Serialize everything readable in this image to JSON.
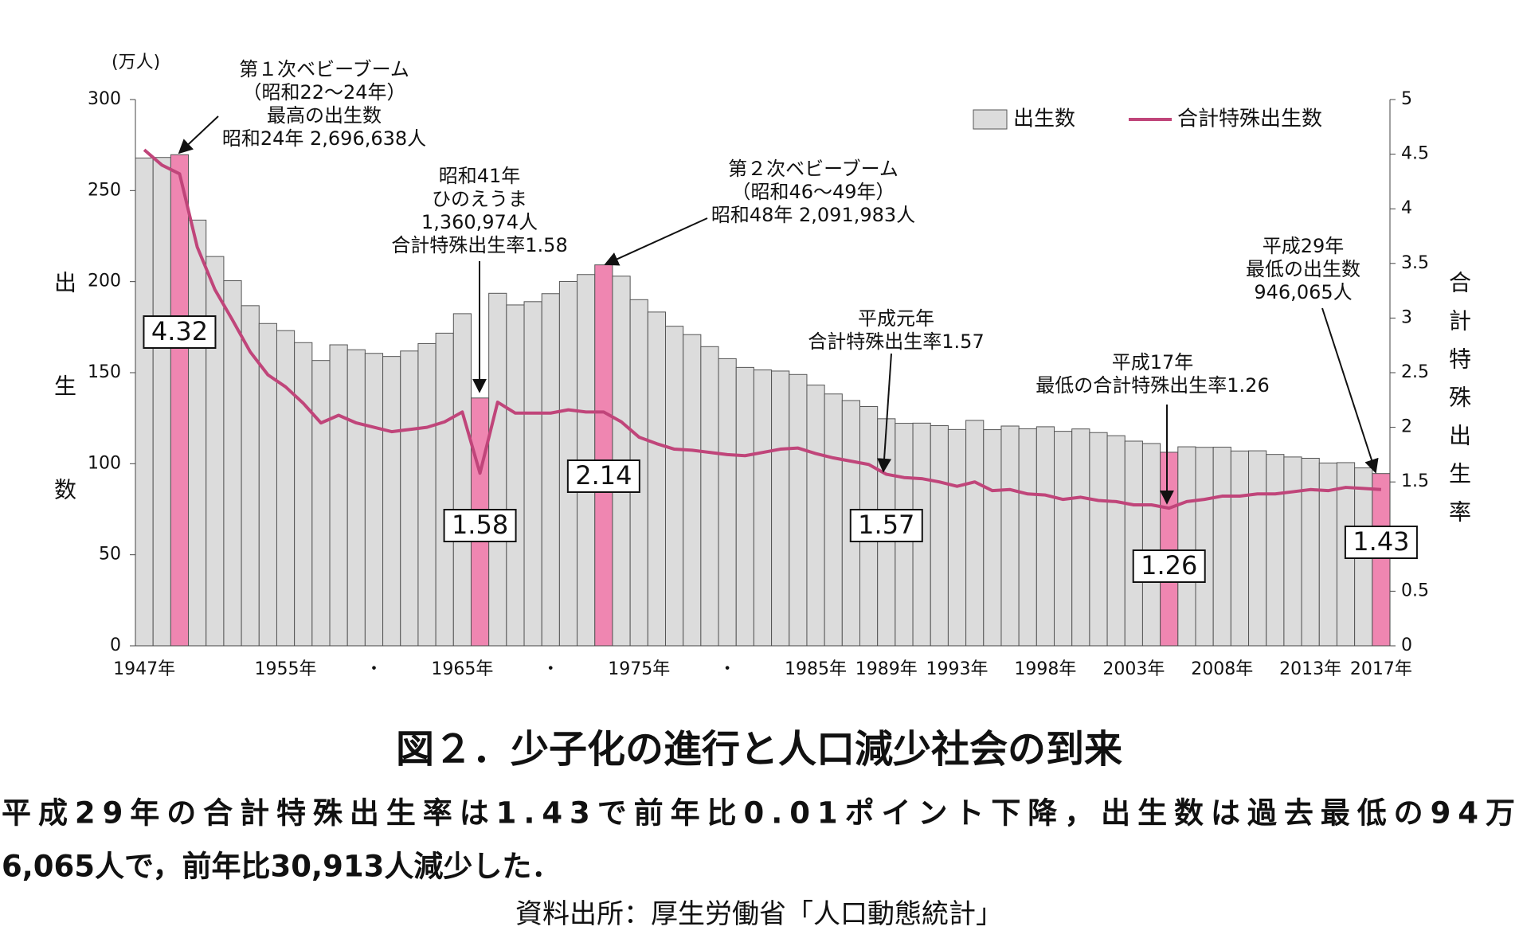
{
  "chart_data": {
    "type": "bar_line",
    "title": "図２．少子化の進行と人口減少社会の到来",
    "subtitle": [
      "平成29年の合計特殊出生率は1.43で前年比0.01ポイント下降，出生数は過去最低の94万",
      "6,065人で，前年比30,913人減少した．"
    ],
    "source": "資料出所：厚生労働省「人口動態統計」",
    "y_unit": "(万人)",
    "ylabel": "出生数",
    "y2label": "合計特殊出生率",
    "categories": [
      "1947年",
      null,
      null,
      null,
      null,
      null,
      null,
      null,
      "1955年",
      null,
      null,
      null,
      null,
      "・",
      null,
      null,
      null,
      null,
      "1965年",
      null,
      null,
      null,
      null,
      "・",
      null,
      null,
      null,
      null,
      "1975年",
      null,
      null,
      null,
      null,
      "・",
      null,
      null,
      null,
      null,
      "1985年",
      null,
      null,
      null,
      "1989年",
      null,
      null,
      null,
      "1993年",
      null,
      null,
      null,
      null,
      "1998年",
      null,
      null,
      null,
      null,
      "2003年",
      null,
      null,
      null,
      null,
      "2008年",
      null,
      null,
      null,
      null,
      "2013年",
      null,
      null,
      null,
      "2017年"
    ],
    "series": [
      {
        "name": "出生数",
        "type": "bar",
        "color": "#dcdcdc",
        "colors": [
          "#dcdcdc",
          "#dcdcdc",
          "#ef86b1",
          "#dcdcdc",
          "#dcdcdc",
          "#dcdcdc",
          "#dcdcdc",
          "#dcdcdc",
          "#dcdcdc",
          "#dcdcdc",
          "#dcdcdc",
          "#dcdcdc",
          "#dcdcdc",
          "#dcdcdc",
          "#dcdcdc",
          "#dcdcdc",
          "#dcdcdc",
          "#dcdcdc",
          "#dcdcdc",
          "#ef86b1",
          "#dcdcdc",
          "#dcdcdc",
          "#dcdcdc",
          "#dcdcdc",
          "#dcdcdc",
          "#dcdcdc",
          "#ef86b1",
          "#dcdcdc",
          "#dcdcdc",
          "#dcdcdc",
          "#dcdcdc",
          "#dcdcdc",
          "#dcdcdc",
          "#dcdcdc",
          "#dcdcdc",
          "#dcdcdc",
          "#dcdcdc",
          "#dcdcdc",
          "#dcdcdc",
          "#dcdcdc",
          "#dcdcdc",
          "#dcdcdc",
          "#dcdcdc",
          "#dcdcdc",
          "#dcdcdc",
          "#dcdcdc",
          "#dcdcdc",
          "#dcdcdc",
          "#dcdcdc",
          "#dcdcdc",
          "#dcdcdc",
          "#dcdcdc",
          "#dcdcdc",
          "#dcdcdc",
          "#dcdcdc",
          "#dcdcdc",
          "#dcdcdc",
          "#dcdcdc",
          "#ef86b1",
          "#dcdcdc",
          "#dcdcdc",
          "#dcdcdc",
          "#dcdcdc",
          "#dcdcdc",
          "#dcdcdc",
          "#dcdcdc",
          "#dcdcdc",
          "#dcdcdc",
          "#dcdcdc",
          "#dcdcdc",
          "#ef86b1"
        ],
        "values": [
          267.9,
          268.2,
          269.7,
          233.8,
          213.8,
          200.5,
          186.8,
          177.0,
          173.1,
          166.5,
          156.7,
          165.3,
          162.6,
          160.6,
          158.9,
          161.9,
          166.0,
          171.7,
          182.4,
          136.1,
          193.6,
          187.2,
          189.0,
          193.4,
          200.1,
          203.9,
          209.2,
          203.0,
          190.1,
          183.3,
          175.5,
          170.9,
          164.3,
          157.7,
          152.9,
          151.5,
          150.9,
          149.0,
          143.2,
          138.3,
          134.7,
          131.4,
          124.7,
          122.2,
          122.3,
          120.9,
          118.8,
          123.8,
          118.7,
          120.7,
          119.2,
          120.3,
          117.8,
          119.1,
          117.1,
          115.4,
          112.4,
          111.1,
          106.3,
          109.3,
          109.0,
          109.1,
          107.0,
          107.1,
          105.1,
          103.7,
          103.0,
          100.4,
          100.6,
          97.7,
          94.6
        ]
      },
      {
        "name": "合計特殊出生数",
        "type": "line",
        "axis": "y2",
        "color": "#c0457a",
        "values": [
          4.54,
          4.4,
          4.32,
          3.65,
          3.26,
          2.98,
          2.69,
          2.48,
          2.37,
          2.22,
          2.04,
          2.11,
          2.04,
          2.0,
          1.96,
          1.98,
          2.0,
          2.05,
          2.14,
          1.58,
          2.23,
          2.13,
          2.13,
          2.13,
          2.16,
          2.14,
          2.14,
          2.05,
          1.91,
          1.85,
          1.8,
          1.79,
          1.77,
          1.75,
          1.74,
          1.77,
          1.8,
          1.81,
          1.76,
          1.72,
          1.69,
          1.66,
          1.57,
          1.54,
          1.53,
          1.5,
          1.46,
          1.5,
          1.42,
          1.43,
          1.39,
          1.38,
          1.34,
          1.36,
          1.33,
          1.32,
          1.29,
          1.29,
          1.26,
          1.32,
          1.34,
          1.37,
          1.37,
          1.39,
          1.39,
          1.41,
          1.43,
          1.42,
          1.45,
          1.44,
          1.43
        ],
        "value_labels": [
          null,
          null,
          "4.32",
          null,
          null,
          null,
          null,
          null,
          null,
          null,
          null,
          null,
          null,
          null,
          null,
          null,
          null,
          null,
          null,
          "1.58",
          null,
          null,
          null,
          null,
          null,
          null,
          "2.14",
          null,
          null,
          null,
          null,
          null,
          null,
          null,
          null,
          null,
          null,
          null,
          null,
          null,
          null,
          null,
          "1.57",
          null,
          null,
          null,
          null,
          null,
          null,
          null,
          null,
          null,
          null,
          null,
          null,
          null,
          null,
          null,
          "1.26",
          null,
          null,
          null,
          null,
          null,
          null,
          null,
          null,
          null,
          null,
          null,
          "1.43"
        ]
      }
    ],
    "ylim": [
      0,
      300
    ],
    "yticks": [
      0,
      50,
      100,
      150,
      200,
      250,
      300
    ],
    "y2lim": [
      0,
      5
    ],
    "y2ticks": [
      0,
      0.5,
      1,
      1.5,
      2,
      2.5,
      3,
      3.5,
      4,
      4.5,
      5
    ],
    "legend": "top-right",
    "annotations": [
      {
        "lines": [
          "第１次ベビーブーム",
          "（昭和22～24年）",
          "最高の出生数",
          "昭和24年 2,696,638人"
        ]
      },
      {
        "lines": [
          "昭和41年",
          "ひのえうま",
          "1,360,974人",
          "合計特殊出生率1.58"
        ]
      },
      {
        "lines": [
          "第２次ベビーブーム",
          "（昭和46～49年）",
          "昭和48年 2,091,983人"
        ]
      },
      {
        "lines": [
          "平成元年",
          "合計特殊出生率1.57"
        ]
      },
      {
        "lines": [
          "平成17年",
          "最低の合計特殊出生率1.26"
        ]
      },
      {
        "lines": [
          "平成29年",
          "最低の出生数",
          "946,065人"
        ]
      }
    ]
  }
}
